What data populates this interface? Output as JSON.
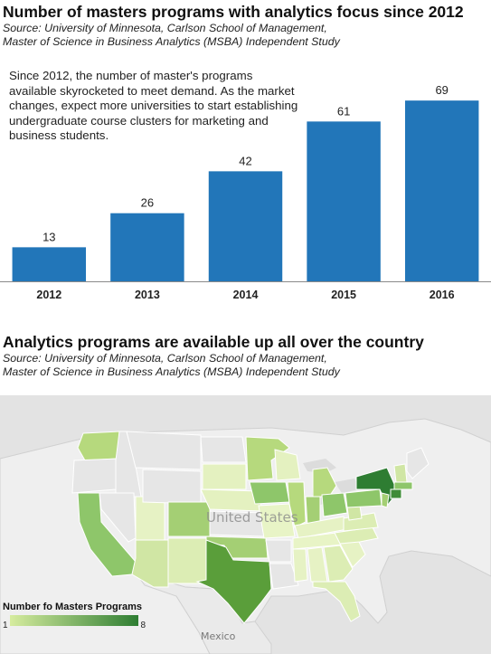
{
  "chart1": {
    "title": "Number of masters programs with analytics focus since 2012",
    "source_lines": [
      "Source:  University of Minnesota, Carlson School of Management,",
      "Master of Science in Business Analytics (MSBA) Independent Study"
    ],
    "note": "Since 2012, the number of master's programs available skyrocketed to meet demand.  As the market changes, expect more universities to start establishing undergraduate course clusters for marketing and business students."
  },
  "chart_data": {
    "type": "bar",
    "categories": [
      "2012",
      "2013",
      "2014",
      "2015",
      "2016"
    ],
    "values": [
      13,
      26,
      42,
      61,
      69
    ],
    "title": "Number of masters programs with analytics focus since 2012",
    "xlabel": "",
    "ylabel": "",
    "ylim": [
      0,
      77
    ],
    "grid": false,
    "bar_color": "#2276b9"
  },
  "map": {
    "title": "Analytics programs are available up all over the country",
    "source_lines": [
      "Source:  University of Minnesota, Carlson School of Management,",
      "Master of Science in Business Analytics (MSBA) Independent Study"
    ],
    "country_label": "United States",
    "mexico_label": "Mexico",
    "legend": {
      "title": "Number fo Masters Programs",
      "min": "1",
      "max": "8",
      "color_min": "#d6ec9f",
      "color_max": "#2e7d32"
    }
  }
}
